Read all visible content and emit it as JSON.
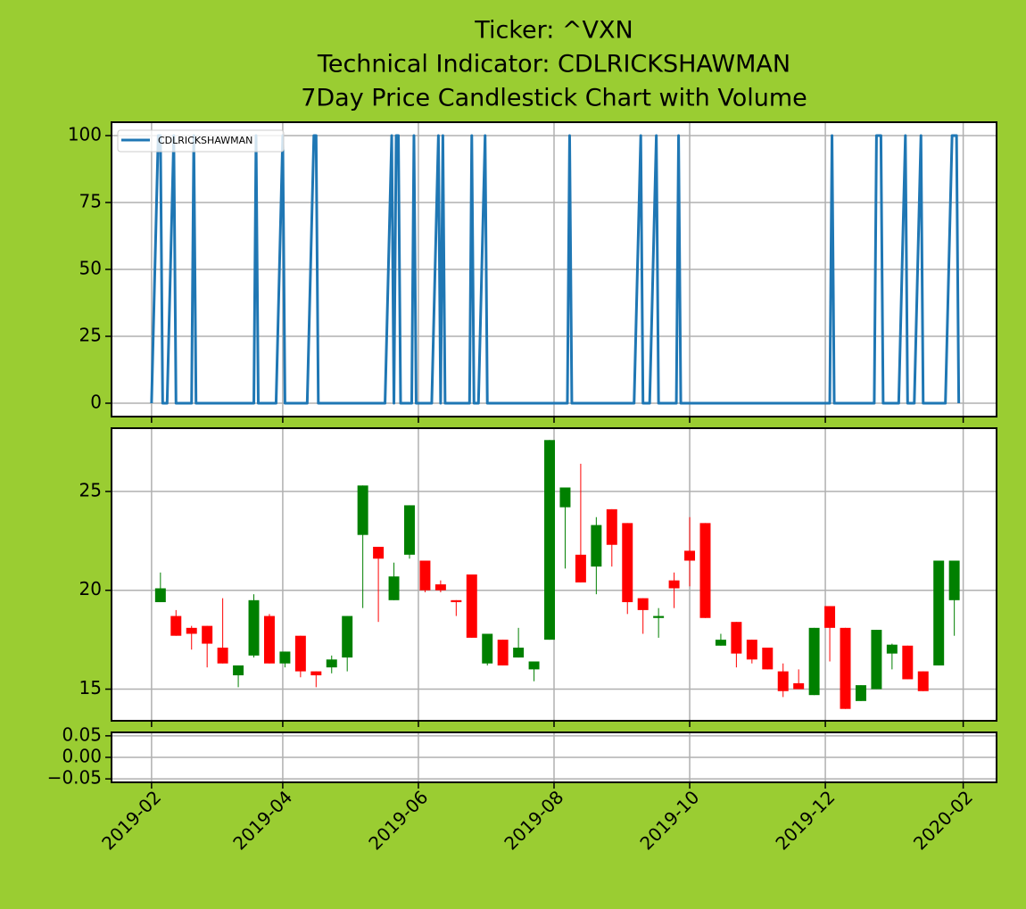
{
  "chart_data": [
    {
      "type": "line",
      "title": [
        "Ticker: ^VXN",
        "Technical Indicator: CDLRICKSHAWMAN",
        "7Day Price Candlestick Chart with Volume"
      ],
      "legend": "upper left",
      "series": [
        {
          "name": "CDLRICKSHAWMAN",
          "color": "#1f77b4",
          "x": [
            "2019-02-01",
            "2019-02-04",
            "2019-02-05",
            "2019-02-06",
            "2019-02-08",
            "2019-02-11",
            "2019-02-12",
            "2019-02-19",
            "2019-02-20",
            "2019-02-21",
            "2019-03-19",
            "2019-03-20",
            "2019-03-21",
            "2019-03-29",
            "2019-04-01",
            "2019-04-02",
            "2019-04-12",
            "2019-04-15",
            "2019-04-16",
            "2019-04-17",
            "2019-05-17",
            "2019-05-20",
            "2019-05-21",
            "2019-05-22",
            "2019-05-23",
            "2019-05-24",
            "2019-05-29",
            "2019-05-30",
            "2019-05-31",
            "2019-06-07",
            "2019-06-10",
            "2019-06-11",
            "2019-06-12",
            "2019-06-13",
            "2019-06-24",
            "2019-06-25",
            "2019-06-26",
            "2019-06-28",
            "2019-07-01",
            "2019-07-02",
            "2019-08-07",
            "2019-08-08",
            "2019-08-09",
            "2019-09-06",
            "2019-09-09",
            "2019-09-10",
            "2019-09-13",
            "2019-09-16",
            "2019-09-17",
            "2019-09-25",
            "2019-09-26",
            "2019-09-27",
            "2019-12-03",
            "2019-12-04",
            "2019-12-05",
            "2019-12-23",
            "2019-12-24",
            "2019-12-26",
            "2019-12-27",
            "2020-01-03",
            "2020-01-06",
            "2020-01-07",
            "2020-01-10",
            "2020-01-13",
            "2020-01-14",
            "2020-01-24",
            "2020-01-27",
            "2020-01-29",
            "2020-01-30"
          ],
          "values": [
            0,
            100,
            100,
            0,
            0,
            100,
            0,
            0,
            100,
            0,
            0,
            100,
            0,
            0,
            100,
            0,
            0,
            100,
            100,
            0,
            0,
            100,
            0,
            100,
            100,
            0,
            0,
            100,
            0,
            0,
            100,
            0,
            100,
            0,
            0,
            100,
            0,
            0,
            100,
            0,
            0,
            100,
            0,
            0,
            100,
            0,
            0,
            100,
            0,
            0,
            100,
            0,
            0,
            100,
            0,
            0,
            100,
            100,
            0,
            0,
            100,
            0,
            0,
            100,
            0,
            0,
            100,
            100,
            0
          ]
        }
      ],
      "ylim": [
        -5,
        105
      ],
      "yticks": [
        0,
        25,
        50,
        75,
        100
      ],
      "grid": true
    },
    {
      "type": "candlestick",
      "up_color": "green",
      "down_color": "red",
      "x": [
        "2019-02-05",
        "2019-02-12",
        "2019-02-19",
        "2019-02-26",
        "2019-03-05",
        "2019-03-12",
        "2019-03-19",
        "2019-03-26",
        "2019-04-02",
        "2019-04-09",
        "2019-04-16",
        "2019-04-23",
        "2019-04-30",
        "2019-05-07",
        "2019-05-14",
        "2019-05-21",
        "2019-05-28",
        "2019-06-04",
        "2019-06-11",
        "2019-06-18",
        "2019-06-25",
        "2019-07-02",
        "2019-07-09",
        "2019-07-16",
        "2019-07-23",
        "2019-07-30",
        "2019-08-06",
        "2019-08-13",
        "2019-08-20",
        "2019-08-27",
        "2019-09-03",
        "2019-09-10",
        "2019-09-17",
        "2019-09-24",
        "2019-10-01",
        "2019-10-08",
        "2019-10-15",
        "2019-10-22",
        "2019-10-29",
        "2019-11-05",
        "2019-11-12",
        "2019-11-19",
        "2019-11-26",
        "2019-12-03",
        "2019-12-10",
        "2019-12-17",
        "2019-12-24",
        "2019-12-31",
        "2020-01-07",
        "2020-01-14",
        "2020-01-21",
        "2020-01-28"
      ],
      "open": [
        19.4,
        18.7,
        18.1,
        18.2,
        17.1,
        15.7,
        16.7,
        18.7,
        16.3,
        17.7,
        15.9,
        16.1,
        16.6,
        22.8,
        22.2,
        19.5,
        21.8,
        21.5,
        20.3,
        19.5,
        20.8,
        16.3,
        17.5,
        16.6,
        16.0,
        17.5,
        24.2,
        21.8,
        21.2,
        24.1,
        23.4,
        19.6,
        18.6,
        20.5,
        22.0,
        23.4,
        17.2,
        18.4,
        17.5,
        17.1,
        15.9,
        15.3,
        14.7,
        19.2,
        18.1,
        14.4,
        15.0,
        16.8,
        17.2,
        15.9,
        16.2,
        19.5
      ],
      "high": [
        20.9,
        19.0,
        18.2,
        18.2,
        19.6,
        16.2,
        19.8,
        18.8,
        16.9,
        17.7,
        15.9,
        16.7,
        18.7,
        25.3,
        22.2,
        21.4,
        24.3,
        21.5,
        20.5,
        19.5,
        20.8,
        17.8,
        17.5,
        18.1,
        16.4,
        27.6,
        25.2,
        26.4,
        23.7,
        24.1,
        23.4,
        19.6,
        19.1,
        20.9,
        23.7,
        23.4,
        17.8,
        18.4,
        17.5,
        17.1,
        16.3,
        16.0,
        18.1,
        19.2,
        18.1,
        15.2,
        18.0,
        17.3,
        17.2,
        15.9,
        21.5,
        21.5
      ],
      "low": [
        19.4,
        17.7,
        17.0,
        16.1,
        16.3,
        15.1,
        16.6,
        16.3,
        16.1,
        15.6,
        15.1,
        15.8,
        15.9,
        19.1,
        18.4,
        19.5,
        21.6,
        19.9,
        19.9,
        18.7,
        17.6,
        16.2,
        16.2,
        16.6,
        15.4,
        17.5,
        21.1,
        20.4,
        19.8,
        21.2,
        18.8,
        17.8,
        17.6,
        19.1,
        20.2,
        18.6,
        17.2,
        16.1,
        16.3,
        16.0,
        14.6,
        15.0,
        14.7,
        16.4,
        14.0,
        14.4,
        15.0,
        16.0,
        15.5,
        14.9,
        16.2,
        17.7
      ],
      "close": [
        20.1,
        17.7,
        17.8,
        17.3,
        16.3,
        16.2,
        19.5,
        16.3,
        16.9,
        15.9,
        15.7,
        16.5,
        18.7,
        25.3,
        21.6,
        20.7,
        24.3,
        20.0,
        20.0,
        19.4,
        17.6,
        17.8,
        16.2,
        17.1,
        16.4,
        27.6,
        25.2,
        20.4,
        23.3,
        22.3,
        19.4,
        19.0,
        18.7,
        20.1,
        21.5,
        18.6,
        17.5,
        16.8,
        16.5,
        16.0,
        14.9,
        15.0,
        18.1,
        18.1,
        14.0,
        15.2,
        18.0,
        17.25,
        15.5,
        14.9,
        21.5,
        21.5
      ],
      "ylim": [
        13.4,
        28.2
      ],
      "yticks": [
        15,
        20,
        25
      ],
      "grid": true
    },
    {
      "type": "bar",
      "ylim": [
        -0.058,
        0.058
      ],
      "yticks": [
        0.05,
        {
          "value": 0,
          "label": "0.00"
        },
        {
          "value": -0.05,
          "label": "−0.05"
        }
      ],
      "xlim": [
        "2019-01-14",
        "2020-02-16"
      ],
      "xticks": [
        {
          "value": "2019-02-01",
          "label": "2019-02"
        },
        {
          "value": "2019-04-01",
          "label": "2019-04"
        },
        {
          "value": "2019-06-01",
          "label": "2019-06"
        },
        {
          "value": "2019-08-01",
          "label": "2019-08"
        },
        {
          "value": "2019-10-01",
          "label": "2019-10"
        },
        {
          "value": "2019-12-01",
          "label": "2019-12"
        },
        {
          "value": "2020-02-01",
          "label": "2020-02"
        }
      ],
      "grid": true
    }
  ]
}
